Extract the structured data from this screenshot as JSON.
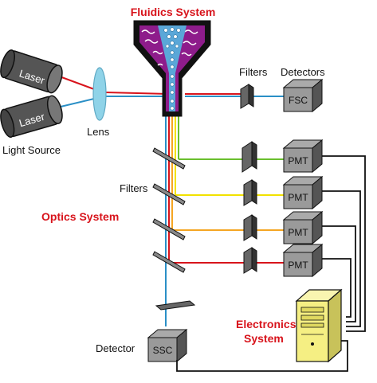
{
  "labels": {
    "fluidics_system": "Fluidics System",
    "filters_top": "Filters",
    "detectors": "Detectors",
    "laser_1": "Laser",
    "laser_2": "Laser",
    "lens": "Lens",
    "light_source": "Light Source",
    "fsc": "FSC",
    "filters_mid": "Filters",
    "optics_line1": "Optics System",
    "pmt_1": "PMT",
    "pmt_2": "PMT",
    "pmt_3": "PMT",
    "pmt_4": "PMT",
    "electronics_line1": "Electronics",
    "electronics_line2": "System",
    "detector": "Detector",
    "ssc": "SSC"
  },
  "colors": {
    "laser_red": "#d8141c",
    "laser_blue": "#2a8fc6",
    "channel_green": "#6abf2e",
    "channel_yellow": "#f2e200",
    "channel_orange": "#f5a623",
    "channel_red": "#d8141c",
    "fluidics_fill": "#8e1c8b",
    "lens_fill": "#8fd3e8",
    "computer_fill": "#f5ef83",
    "accent_label": "#d8141c"
  }
}
